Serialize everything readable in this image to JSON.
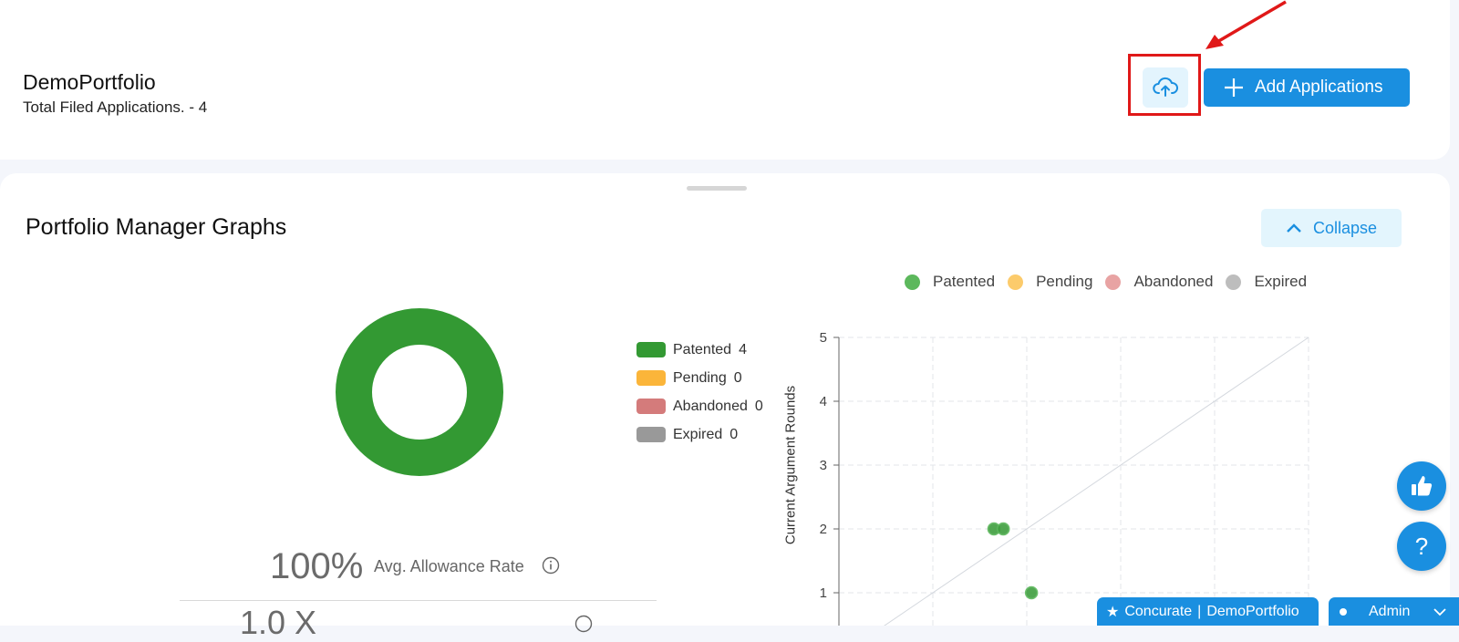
{
  "header": {
    "portfolio_name": "DemoPortfolio",
    "subtitle": "Total Filed Applications. - 4",
    "upload_icon": "cloud-upload-icon",
    "add_button_label": "Add Applications"
  },
  "graphs": {
    "title": "Portfolio Manager Graphs",
    "collapse_label": "Collapse"
  },
  "donut_legend": [
    {
      "label": "Patented",
      "count": "4",
      "color": "#339933"
    },
    {
      "label": "Pending",
      "count": "0",
      "color": "#fbb53a"
    },
    {
      "label": "Abandoned",
      "count": "0",
      "color": "#d47b7b"
    },
    {
      "label": "Expired",
      "count": "0",
      "color": "#999999"
    }
  ],
  "stats": {
    "allowance_value": "100%",
    "allowance_label": "Avg. Allowance Rate",
    "second_value": "1.0 X"
  },
  "scatter_legend": [
    {
      "label": "Patented",
      "color": "#5cb85c"
    },
    {
      "label": "Pending",
      "color": "#fccb6b"
    },
    {
      "label": "Abandoned",
      "color": "#e8a3a3"
    },
    {
      "label": "Expired",
      "color": "#bdbdbd"
    }
  ],
  "chart_data": [
    {
      "type": "pie",
      "labels": [
        "Patented",
        "Pending",
        "Abandoned",
        "Expired"
      ],
      "values": [
        4,
        0,
        0,
        0
      ],
      "colors": [
        "#339933",
        "#fbb53a",
        "#d47b7b",
        "#999999"
      ],
      "legend": "right"
    },
    {
      "type": "scatter",
      "ylabel": "Current Argument Rounds",
      "ylim": [
        0,
        5
      ],
      "yticks": [
        "5",
        "4",
        "3",
        "2",
        "1"
      ],
      "grid": true,
      "legend": "top",
      "series": [
        {
          "name": "Patented",
          "points": [
            {
              "x": 1.65,
              "y": 2
            },
            {
              "x": 1.75,
              "y": 2
            },
            {
              "x": 2.05,
              "y": 1
            }
          ]
        }
      ]
    }
  ],
  "footer": {
    "brand": "Concurate",
    "portfolio": "DemoPortfolio",
    "user": "Admin"
  }
}
